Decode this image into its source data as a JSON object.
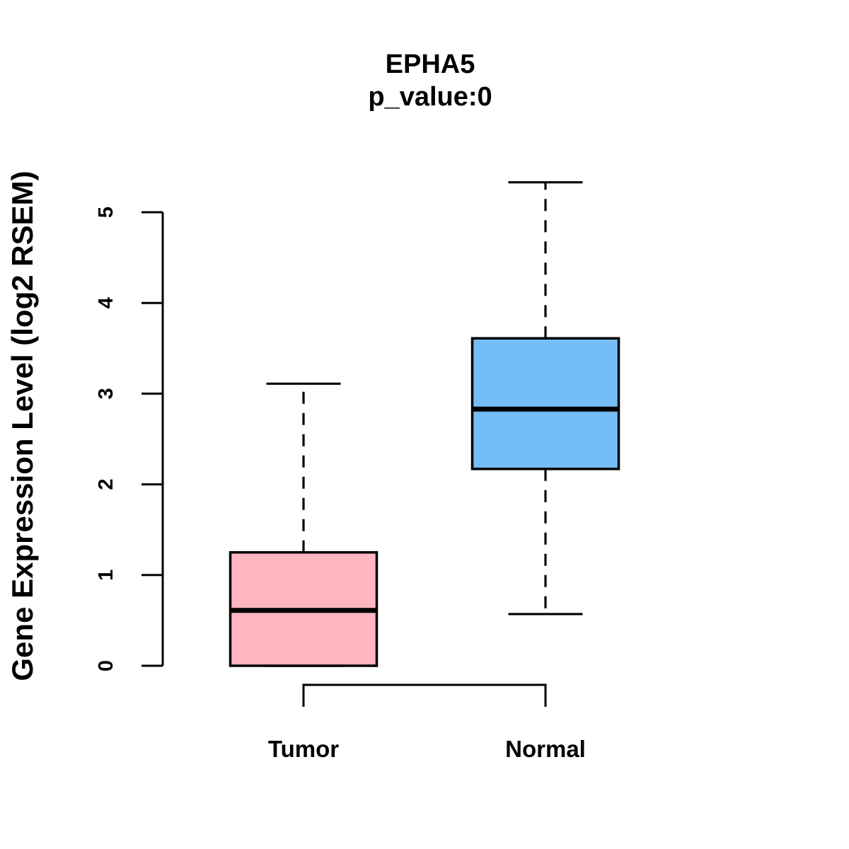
{
  "chart": {
    "title": "EPHA5",
    "subtitle": "p_value:0",
    "ylabel": "Gene Expression Level (log2 RSEM)"
  },
  "chart_data": {
    "type": "boxplot",
    "title": "EPHA5",
    "subtitle": "p_value:0",
    "xlabel": "",
    "ylabel": "Gene Expression Level (log2 RSEM)",
    "categories": [
      "Tumor",
      "Normal"
    ],
    "series": [
      {
        "name": "Tumor",
        "min": 0.0,
        "q1": 0.0,
        "median": 0.61,
        "q3": 1.25,
        "max": 3.11,
        "color": "#FFB6C1"
      },
      {
        "name": "Normal",
        "min": 0.57,
        "q1": 2.17,
        "median": 2.83,
        "q3": 3.61,
        "max": 5.33,
        "color": "#74BDF6"
      }
    ],
    "ylim": [
      0,
      5
    ],
    "yticks": [
      "0",
      "1",
      "2",
      "3",
      "4",
      "5"
    ],
    "grid": false,
    "legend": "none",
    "whisker_style": "dashed",
    "stroke_color": "#000000",
    "background_color": "#FFFFFF",
    "comparison_bracket": {
      "between": [
        "Tumor",
        "Normal"
      ]
    }
  }
}
